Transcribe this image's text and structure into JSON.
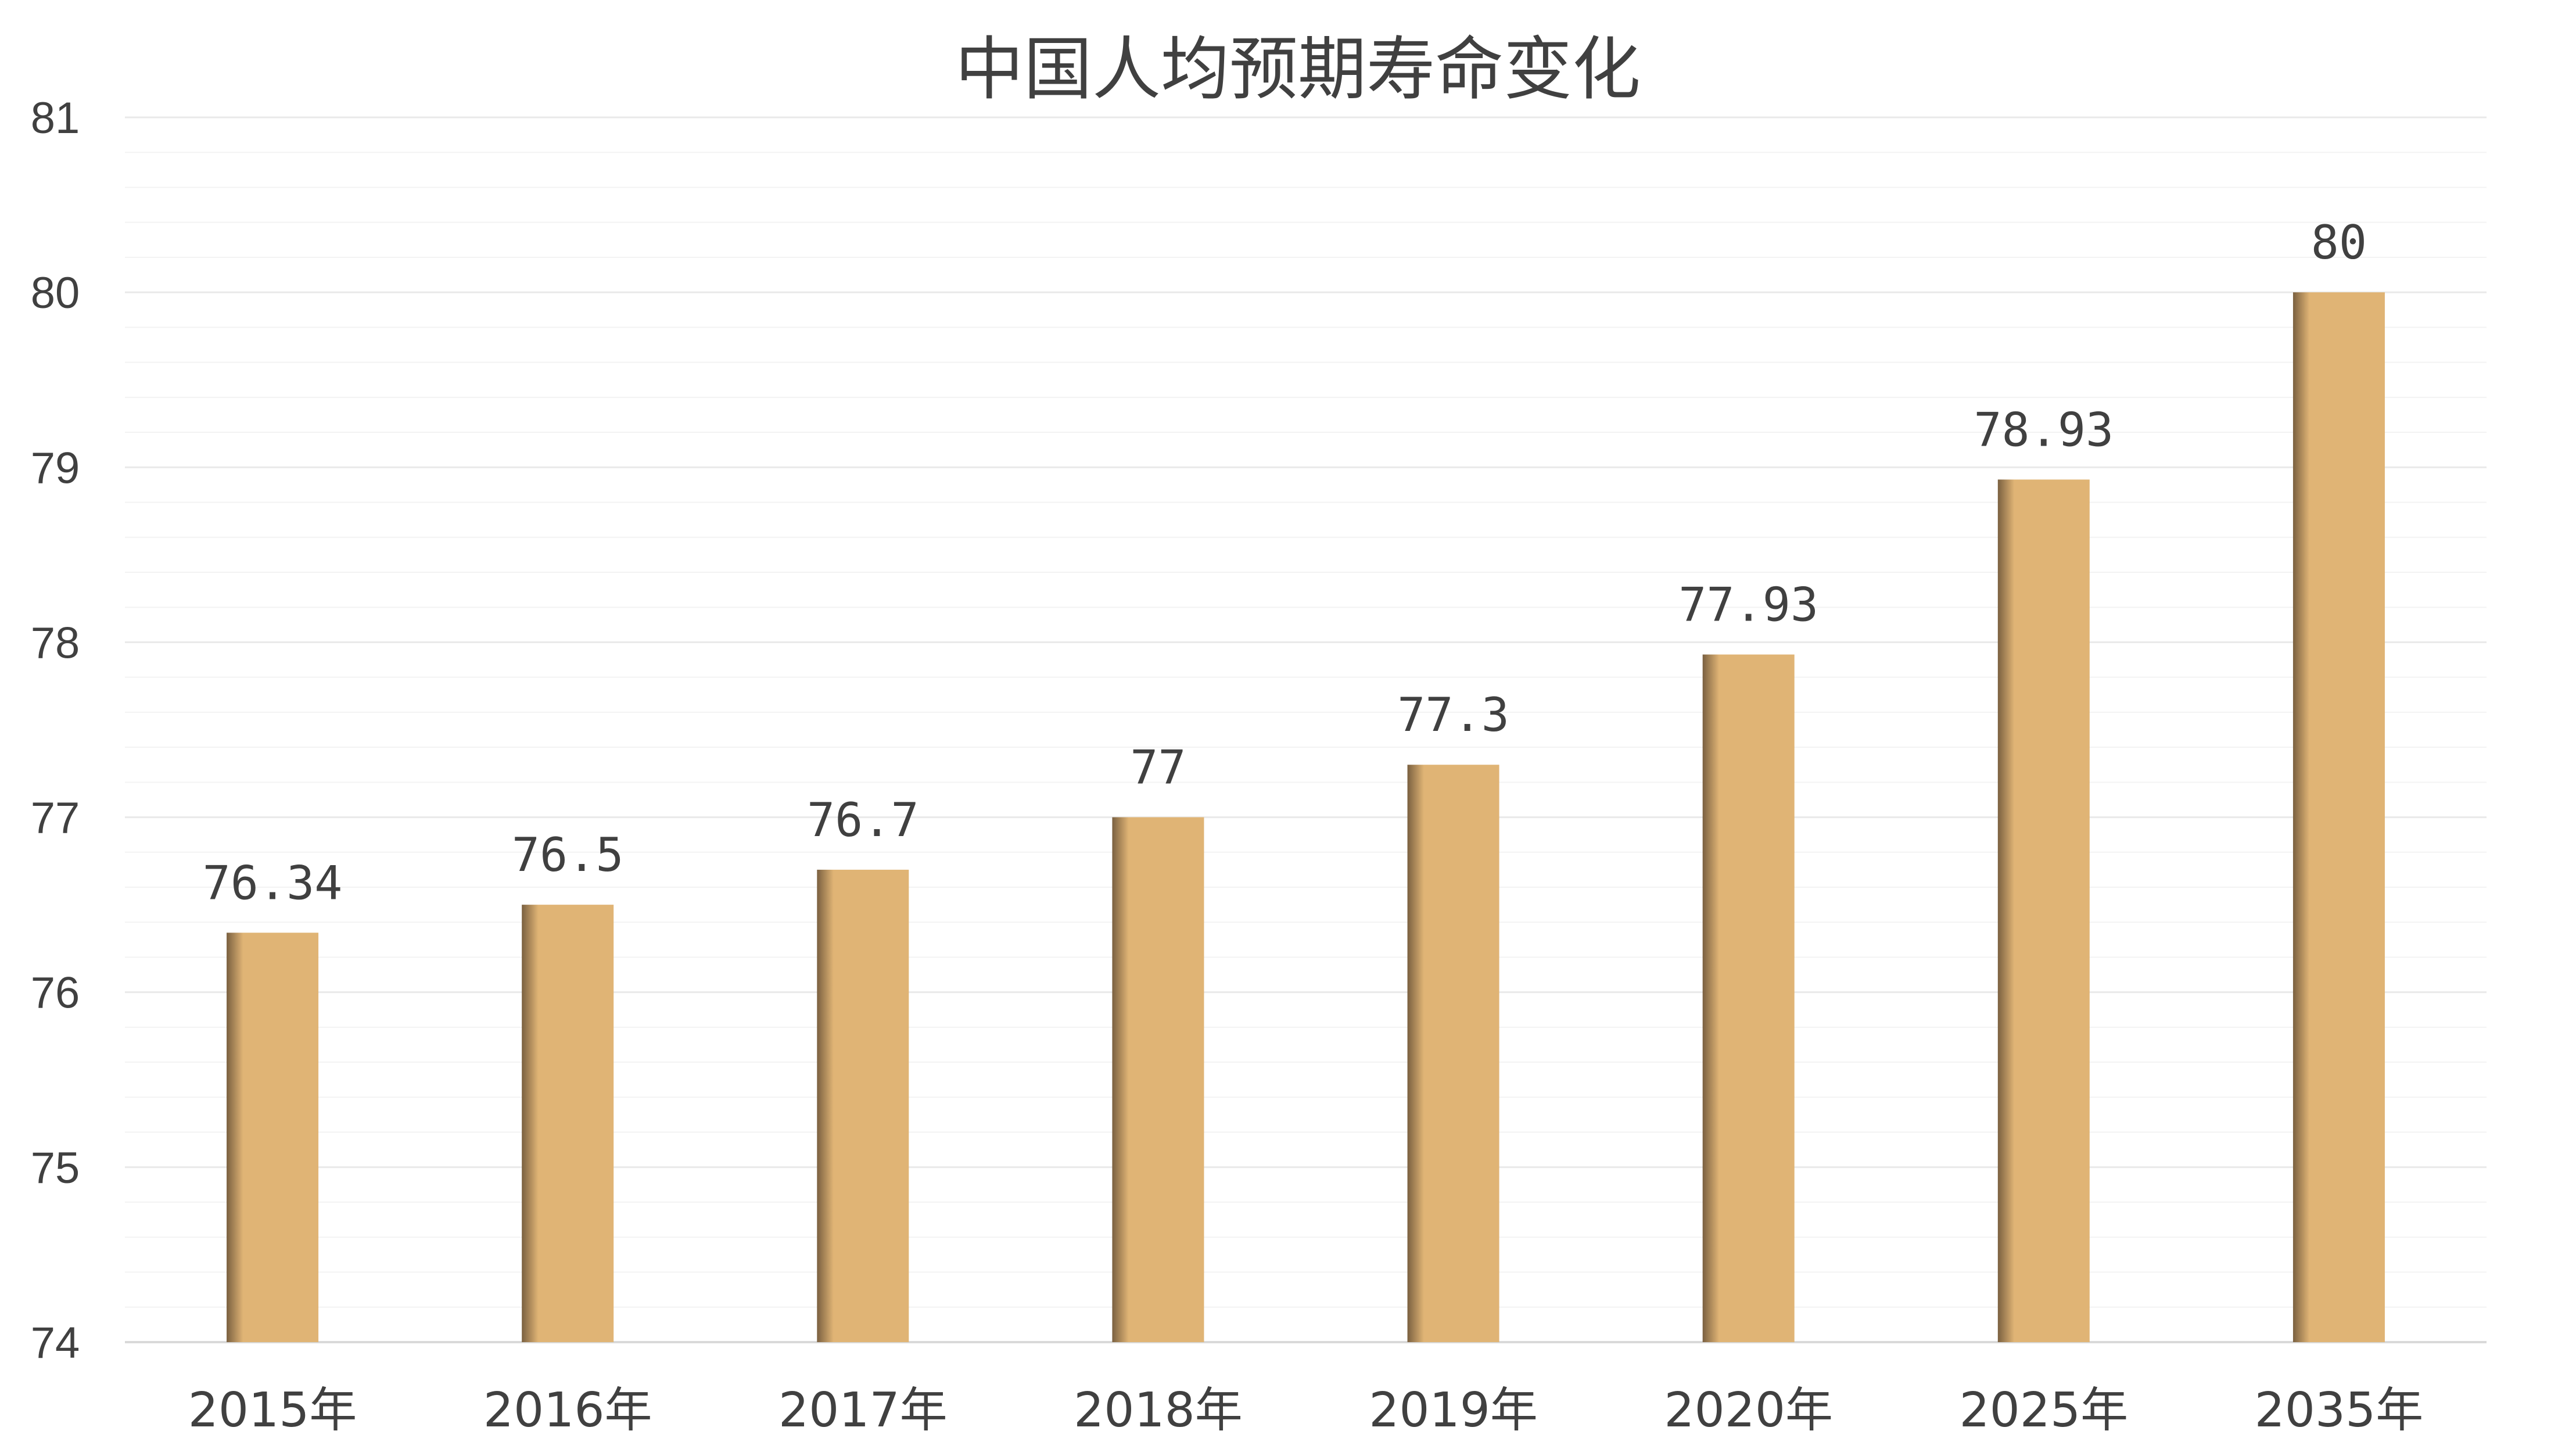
{
  "chart_data": {
    "type": "bar",
    "title": "中国人均预期寿命变化",
    "categories": [
      "2015年",
      "2016年",
      "2017年",
      "2018年",
      "2019年",
      "2020年",
      "2025年",
      "2035年"
    ],
    "values": [
      76.34,
      76.5,
      76.7,
      77,
      77.3,
      77.93,
      78.93,
      80
    ],
    "data_labels": [
      "76.34",
      "76.5",
      "76.7",
      "77",
      "77.3",
      "77.93",
      "78.93",
      "80"
    ],
    "ylim": [
      74,
      81
    ],
    "yticks": [
      "74",
      "75",
      "76",
      "77",
      "78",
      "79",
      "80",
      "81"
    ],
    "y_minor_step": 0.2,
    "grid": true,
    "legend": "none",
    "xlabel": "",
    "ylabel": "",
    "colors": {
      "bar": "#e0b475",
      "bar_shade": "#7a6040",
      "text": "#404040"
    }
  }
}
